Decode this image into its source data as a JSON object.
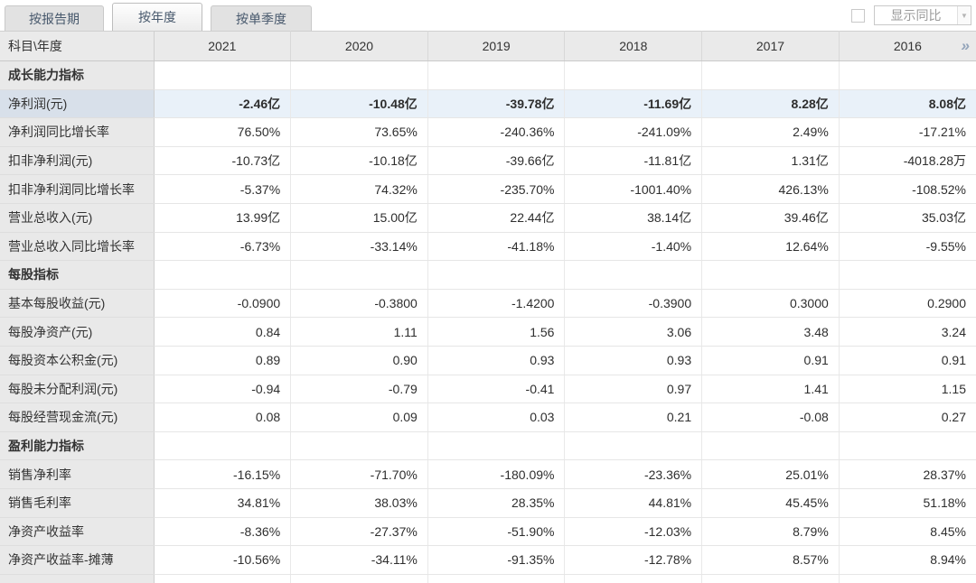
{
  "tabs": [
    {
      "label": "按报告期",
      "active": false
    },
    {
      "label": "按年度",
      "active": true
    },
    {
      "label": "按单季度",
      "active": false
    }
  ],
  "controls": {
    "checkbox_checked": false,
    "dropdown_label": "显示同比",
    "dropdown_arrow_icon": "▼",
    "expand_icon": "»"
  },
  "table": {
    "corner_label": "科目\\年度",
    "year_columns": [
      "2021",
      "2020",
      "2019",
      "2018",
      "2017",
      "2016"
    ],
    "rows": [
      {
        "type": "section",
        "label": "成长能力指标"
      },
      {
        "type": "data",
        "highlight": true,
        "label": "净利润(元)",
        "values": [
          "-2.46亿",
          "-10.48亿",
          "-39.78亿",
          "-11.69亿",
          "8.28亿",
          "8.08亿"
        ]
      },
      {
        "type": "data",
        "label": "净利润同比增长率",
        "values": [
          "76.50%",
          "73.65%",
          "-240.36%",
          "-241.09%",
          "2.49%",
          "-17.21%"
        ]
      },
      {
        "type": "data",
        "label": "扣非净利润(元)",
        "values": [
          "-10.73亿",
          "-10.18亿",
          "-39.66亿",
          "-11.81亿",
          "1.31亿",
          "-4018.28万"
        ]
      },
      {
        "type": "data",
        "label": "扣非净利润同比增长率",
        "values": [
          "-5.37%",
          "74.32%",
          "-235.70%",
          "-1001.40%",
          "426.13%",
          "-108.52%"
        ]
      },
      {
        "type": "data",
        "label": "营业总收入(元)",
        "values": [
          "13.99亿",
          "15.00亿",
          "22.44亿",
          "38.14亿",
          "39.46亿",
          "35.03亿"
        ]
      },
      {
        "type": "data",
        "label": "营业总收入同比增长率",
        "values": [
          "-6.73%",
          "-33.14%",
          "-41.18%",
          "-1.40%",
          "12.64%",
          "-9.55%"
        ]
      },
      {
        "type": "section",
        "label": "每股指标"
      },
      {
        "type": "data",
        "label": "基本每股收益(元)",
        "values": [
          "-0.0900",
          "-0.3800",
          "-1.4200",
          "-0.3900",
          "0.3000",
          "0.2900"
        ]
      },
      {
        "type": "data",
        "label": "每股净资产(元)",
        "values": [
          "0.84",
          "1.11",
          "1.56",
          "3.06",
          "3.48",
          "3.24"
        ]
      },
      {
        "type": "data",
        "label": "每股资本公积金(元)",
        "values": [
          "0.89",
          "0.90",
          "0.93",
          "0.93",
          "0.91",
          "0.91"
        ]
      },
      {
        "type": "data",
        "label": "每股未分配利润(元)",
        "values": [
          "-0.94",
          "-0.79",
          "-0.41",
          "0.97",
          "1.41",
          "1.15"
        ]
      },
      {
        "type": "data",
        "label": "每股经营现金流(元)",
        "values": [
          "0.08",
          "0.09",
          "0.03",
          "0.21",
          "-0.08",
          "0.27"
        ]
      },
      {
        "type": "section",
        "label": "盈利能力指标"
      },
      {
        "type": "data",
        "label": "销售净利率",
        "values": [
          "-16.15%",
          "-71.70%",
          "-180.09%",
          "-23.36%",
          "25.01%",
          "28.37%"
        ]
      },
      {
        "type": "data",
        "label": "销售毛利率",
        "values": [
          "34.81%",
          "38.03%",
          "28.35%",
          "44.81%",
          "45.45%",
          "51.18%"
        ]
      },
      {
        "type": "data",
        "label": "净资产收益率",
        "values": [
          "-8.36%",
          "-27.37%",
          "-51.90%",
          "-12.03%",
          "8.79%",
          "8.45%"
        ]
      },
      {
        "type": "data",
        "label": "净资产收益率-摊薄",
        "values": [
          "-10.56%",
          "-34.11%",
          "-91.35%",
          "-12.78%",
          "8.57%",
          "8.94%"
        ]
      }
    ]
  },
  "colors": {
    "header_bg": "#eaeaea",
    "label_col_bg": "#e9e9e9",
    "highlight_label_bg": "#d8e0ea",
    "highlight_row_bg": "#e9f1f9",
    "tab_text": "#47586c",
    "expand_icon": "#93a4ba",
    "muted_text": "#9b9b9b"
  }
}
